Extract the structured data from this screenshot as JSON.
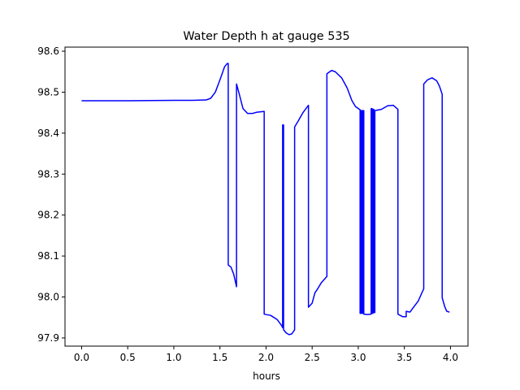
{
  "chart_data": {
    "type": "line",
    "title": "Water Depth h at gauge 535",
    "xlabel": "hours",
    "ylabel": "",
    "xlim": [
      -0.18,
      4.19
    ],
    "ylim": [
      97.88,
      98.61
    ],
    "xticks": [
      0.0,
      0.5,
      1.0,
      1.5,
      2.0,
      2.5,
      3.0,
      3.5,
      4.0
    ],
    "xtick_labels": [
      "0.0",
      "0.5",
      "1.0",
      "1.5",
      "2.0",
      "2.5",
      "3.0",
      "3.5",
      "4.0"
    ],
    "yticks": [
      97.9,
      98.0,
      98.1,
      98.2,
      98.3,
      98.4,
      98.5,
      98.6
    ],
    "ytick_labels": [
      "97.9",
      "98.0",
      "98.1",
      "98.2",
      "98.3",
      "98.4",
      "98.5",
      "98.6"
    ],
    "grid": false,
    "series": [
      {
        "name": "",
        "color": "#0000ff",
        "points": [
          [
            0.0,
            98.479
          ],
          [
            0.5,
            98.479
          ],
          [
            1.0,
            98.48
          ],
          [
            1.2,
            98.48
          ],
          [
            1.35,
            98.481
          ],
          [
            1.4,
            98.485
          ],
          [
            1.45,
            98.5
          ],
          [
            1.5,
            98.53
          ],
          [
            1.55,
            98.562
          ],
          [
            1.58,
            98.57
          ],
          [
            1.59,
            98.57
          ],
          [
            1.59,
            98.078
          ],
          [
            1.62,
            98.073
          ],
          [
            1.65,
            98.055
          ],
          [
            1.67,
            98.035
          ],
          [
            1.68,
            98.025
          ],
          [
            1.68,
            98.52
          ],
          [
            1.71,
            98.495
          ],
          [
            1.75,
            98.46
          ],
          [
            1.8,
            98.448
          ],
          [
            1.85,
            98.448
          ],
          [
            1.9,
            98.451
          ],
          [
            1.98,
            98.453
          ],
          [
            1.98,
            97.958
          ],
          [
            2.05,
            97.955
          ],
          [
            2.12,
            97.945
          ],
          [
            2.17,
            97.93
          ],
          [
            2.18,
            97.925
          ],
          [
            2.18,
            98.42
          ],
          [
            2.19,
            98.42
          ],
          [
            2.19,
            97.92
          ],
          [
            2.22,
            97.912
          ],
          [
            2.25,
            97.908
          ],
          [
            2.28,
            97.91
          ],
          [
            2.31,
            97.92
          ],
          [
            2.31,
            98.415
          ],
          [
            2.35,
            98.43
          ],
          [
            2.4,
            98.45
          ],
          [
            2.46,
            98.468
          ],
          [
            2.46,
            97.975
          ],
          [
            2.5,
            97.985
          ],
          [
            2.53,
            98.01
          ],
          [
            2.56,
            98.02
          ],
          [
            2.6,
            98.035
          ],
          [
            2.66,
            98.05
          ],
          [
            2.66,
            98.545
          ],
          [
            2.71,
            98.553
          ],
          [
            2.75,
            98.55
          ],
          [
            2.82,
            98.535
          ],
          [
            2.88,
            98.51
          ],
          [
            2.93,
            98.48
          ],
          [
            2.97,
            98.465
          ],
          [
            3.02,
            98.457
          ],
          [
            3.02,
            97.96
          ],
          [
            3.03,
            97.96
          ],
          [
            3.03,
            98.455
          ],
          [
            3.04,
            98.455
          ],
          [
            3.04,
            97.96
          ],
          [
            3.05,
            97.96
          ],
          [
            3.05,
            98.455
          ],
          [
            3.06,
            98.455
          ],
          [
            3.06,
            97.958
          ],
          [
            3.1,
            97.957
          ],
          [
            3.14,
            97.958
          ],
          [
            3.14,
            98.46
          ],
          [
            3.15,
            98.46
          ],
          [
            3.15,
            97.96
          ],
          [
            3.16,
            97.96
          ],
          [
            3.16,
            98.458
          ],
          [
            3.17,
            98.458
          ],
          [
            3.17,
            97.962
          ],
          [
            3.18,
            97.962
          ],
          [
            3.18,
            98.455
          ],
          [
            3.25,
            98.458
          ],
          [
            3.32,
            98.467
          ],
          [
            3.38,
            98.468
          ],
          [
            3.43,
            98.458
          ],
          [
            3.43,
            97.958
          ],
          [
            3.48,
            97.952
          ],
          [
            3.52,
            97.952
          ],
          [
            3.52,
            97.965
          ],
          [
            3.56,
            97.963
          ],
          [
            3.6,
            97.975
          ],
          [
            3.65,
            97.99
          ],
          [
            3.69,
            98.01
          ],
          [
            3.71,
            98.02
          ],
          [
            3.71,
            98.52
          ],
          [
            3.75,
            98.53
          ],
          [
            3.8,
            98.535
          ],
          [
            3.85,
            98.528
          ],
          [
            3.88,
            98.515
          ],
          [
            3.91,
            98.495
          ],
          [
            3.91,
            97.998
          ],
          [
            3.94,
            97.975
          ],
          [
            3.96,
            97.965
          ],
          [
            3.99,
            97.963
          ]
        ]
      }
    ]
  }
}
